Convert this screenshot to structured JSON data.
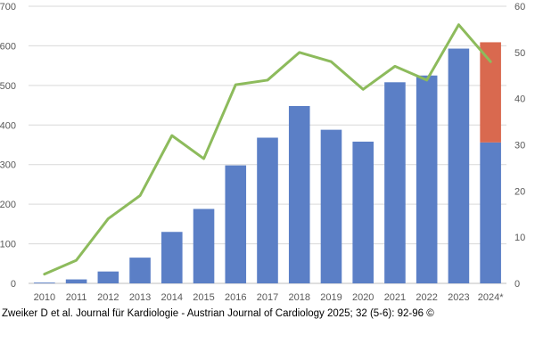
{
  "chart_data": {
    "type": "bar",
    "categories": [
      "2010",
      "2011",
      "2012",
      "2013",
      "2014",
      "2015",
      "2016",
      "2017",
      "2018",
      "2019",
      "2020",
      "2021",
      "2022",
      "2023",
      "2024*"
    ],
    "series": [
      {
        "name": "Bars (left axis)",
        "axis": "left",
        "values": [
          2,
          10,
          30,
          65,
          130,
          188,
          298,
          368,
          448,
          388,
          358,
          508,
          525,
          593,
          356
        ],
        "color": "#5B7FC6"
      },
      {
        "name": "Bars stacked segment 2024* (left axis)",
        "axis": "left",
        "values": [
          0,
          0,
          0,
          0,
          0,
          0,
          0,
          0,
          0,
          0,
          0,
          0,
          0,
          0,
          253
        ],
        "color": "#D9694F"
      },
      {
        "name": "Line (right axis)",
        "type": "line",
        "axis": "right",
        "values": [
          2,
          5,
          14,
          19,
          32,
          27,
          43,
          44,
          50,
          48,
          42,
          47,
          44,
          56,
          48
        ],
        "color": "#8DBB5C"
      }
    ],
    "ylim_left": [
      0,
      700
    ],
    "yticks_left": [
      "0",
      "100",
      "200",
      "300",
      "400",
      "500",
      "600",
      "700"
    ],
    "ylim_right": [
      0,
      60
    ],
    "yticks_right": [
      "0",
      "10",
      "20",
      "30",
      "40",
      "50",
      "60"
    ],
    "grid": true,
    "title": "",
    "xlabel": "",
    "ylabel": ""
  },
  "citation": "Zweiker D et al. Journal für Kardiologie - Austrian Journal of Cardiology 2025; 32 (5-6): 92-96 ©"
}
